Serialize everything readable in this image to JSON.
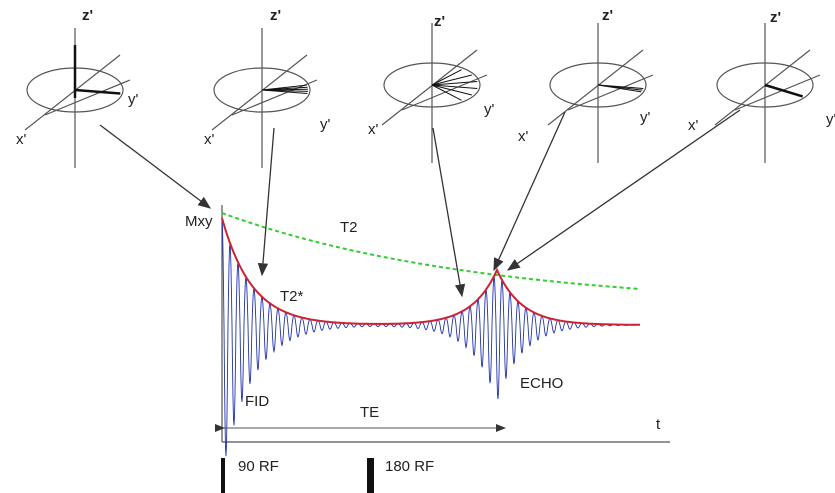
{
  "frames": [
    {
      "z": "z'",
      "x": "x'",
      "y": "y'"
    },
    {
      "z": "z'",
      "x": "x'",
      "y": "y'"
    },
    {
      "z": "z'",
      "x": "x'",
      "y": "y'"
    },
    {
      "z": "z'",
      "x": "x'",
      "y": "y'"
    },
    {
      "z": "z'",
      "x": "x'",
      "y": "y'"
    }
  ],
  "graph": {
    "y_axis": "Mxy",
    "x_axis": "t",
    "t2": "T2",
    "t2_star": "T2*",
    "fid": "FID",
    "echo": "ECHO",
    "te": "TE"
  },
  "pulses": [
    "90 RF",
    "180 RF"
  ]
}
